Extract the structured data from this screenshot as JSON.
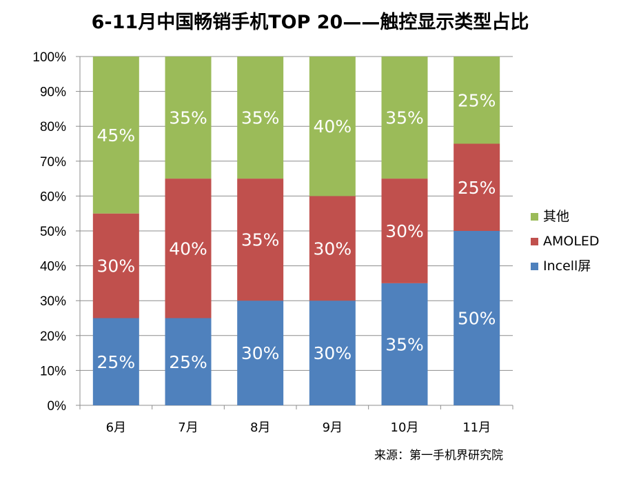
{
  "chart_data": {
    "type": "bar",
    "stacked": true,
    "title": "6-11月中国畅销手机TOP 20——触控显示类型占比",
    "categories": [
      "6月",
      "7月",
      "8月",
      "9月",
      "10月",
      "11月"
    ],
    "ylim": [
      0,
      100
    ],
    "y_ticks": [
      "0%",
      "10%",
      "20%",
      "30%",
      "40%",
      "50%",
      "60%",
      "70%",
      "80%",
      "90%",
      "100%"
    ],
    "grid": true,
    "legend_position": "right",
    "series": [
      {
        "name": "Incell屏",
        "color": "#4F81BD",
        "values": [
          25,
          25,
          30,
          30,
          35,
          50
        ],
        "labels": [
          "25%",
          "25%",
          "30%",
          "30%",
          "35%",
          "50%"
        ]
      },
      {
        "name": "AMOLED",
        "color": "#C0504D",
        "values": [
          30,
          40,
          35,
          30,
          30,
          25
        ],
        "labels": [
          "30%",
          "40%",
          "35%",
          "30%",
          "30%",
          "25%"
        ]
      },
      {
        "name": "其他",
        "color": "#9BBB59",
        "values": [
          45,
          35,
          35,
          40,
          35,
          25
        ],
        "labels": [
          "45%",
          "35%",
          "35%",
          "40%",
          "35%",
          "25%"
        ]
      }
    ],
    "legend_order": [
      "其他",
      "AMOLED",
      "Incell屏"
    ],
    "source": "来源：第一手机界研究院"
  }
}
